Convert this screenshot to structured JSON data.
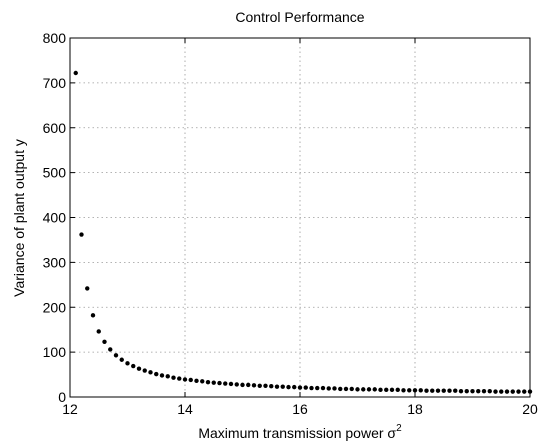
{
  "chart_data": {
    "type": "scatter",
    "title": "Control Performance",
    "xlabel": "Maximum transmission power σ",
    "xlabel_superscript": "2",
    "ylabel": "Variance of plant output y",
    "xlim": [
      12,
      20
    ],
    "ylim": [
      0,
      800
    ],
    "xticks": [
      12,
      14,
      16,
      18,
      20
    ],
    "xtick_labels": [
      "12",
      "14",
      "16",
      "18",
      "20"
    ],
    "yticks": [
      0,
      100,
      200,
      300,
      400,
      500,
      600,
      700,
      800
    ],
    "ytick_labels": [
      "0",
      "100",
      "200",
      "300",
      "400",
      "500",
      "600",
      "700",
      "800"
    ],
    "grid": true,
    "marker_color": "#000000",
    "series": [
      {
        "x": [
          12.1,
          12.2,
          12.3,
          12.4,
          12.5,
          12.6,
          12.7,
          12.8,
          12.9,
          13.0,
          13.1,
          13.2,
          13.3,
          13.4,
          13.5,
          13.6,
          13.7,
          13.8,
          13.9,
          14.0,
          14.1,
          14.2,
          14.3,
          14.4,
          14.5,
          14.6,
          14.7,
          14.8,
          14.9,
          15.0,
          15.1,
          15.2,
          15.3,
          15.4,
          15.5,
          15.6,
          15.7,
          15.8,
          15.9,
          16.0,
          16.1,
          16.2,
          16.3,
          16.4,
          16.5,
          16.6,
          16.7,
          16.8,
          16.9,
          17.0,
          17.1,
          17.2,
          17.3,
          17.4,
          17.5,
          17.6,
          17.7,
          17.8,
          17.9,
          18.0,
          18.1,
          18.2,
          18.3,
          18.4,
          18.5,
          18.6,
          18.7,
          18.8,
          18.9,
          19.0,
          19.1,
          19.2,
          19.3,
          19.4,
          19.5,
          19.6,
          19.7,
          19.8,
          19.9,
          20.0
        ],
        "y": [
          722,
          362,
          242,
          182,
          146,
          123,
          106,
          93,
          83,
          75,
          69,
          63,
          59,
          55,
          51,
          48,
          46,
          43,
          41,
          39,
          38,
          36,
          35,
          33,
          32,
          31,
          30,
          29,
          28,
          27,
          27,
          26,
          25,
          25,
          24,
          23,
          23,
          22,
          22,
          21,
          21,
          20,
          20,
          20,
          19,
          19,
          18,
          18,
          18,
          17,
          17,
          17,
          17,
          16,
          16,
          16,
          16,
          15,
          15,
          15,
          15,
          14,
          14,
          14,
          14,
          14,
          14,
          13,
          13,
          13,
          13,
          13,
          13,
          12,
          12,
          12,
          12,
          12,
          12,
          12
        ]
      }
    ]
  }
}
